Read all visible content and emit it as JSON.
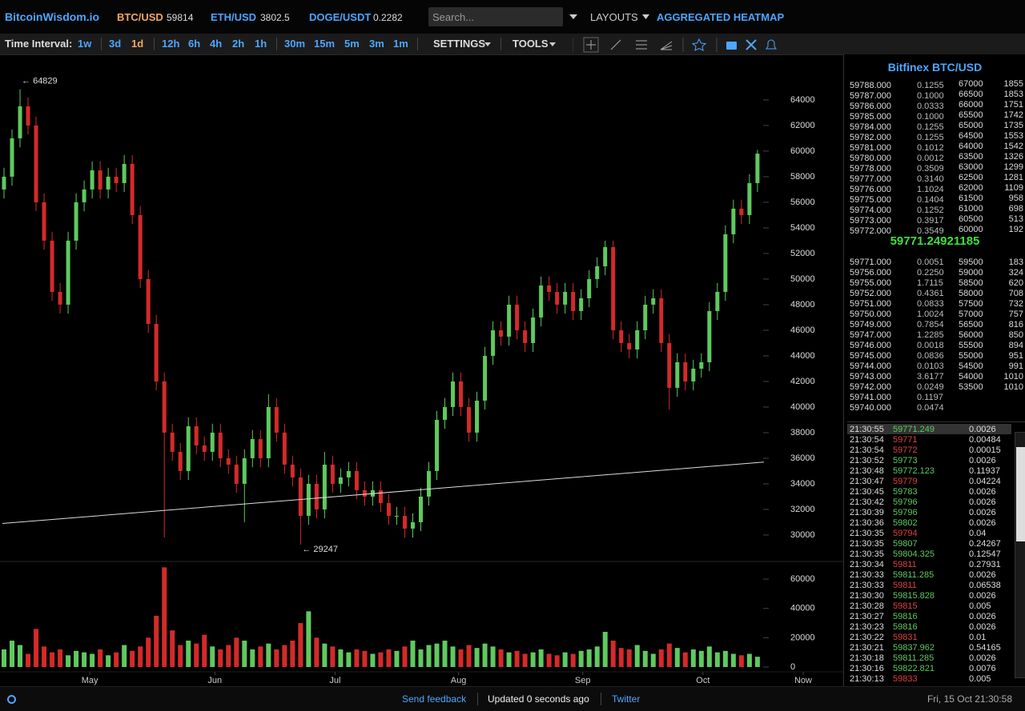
{
  "header": {
    "brand": "BitcoinWisdom.io",
    "tickers": [
      {
        "pair": "BTC/USD",
        "price": "59814",
        "color": "#f0a860"
      },
      {
        "pair": "ETH/USD",
        "price": "3802.5",
        "color": "#4da6ff"
      },
      {
        "pair": "DOGE/USDT",
        "price": "0.2282",
        "color": "#4da6ff"
      }
    ],
    "search_placeholder": "Search...",
    "layouts": "LAYOUTS",
    "heatmap": "AGGREGATED HEATMAP"
  },
  "toolbar": {
    "label": "Time Interval:",
    "intervals": [
      "1w",
      "3d",
      "1d",
      "12h",
      "6h",
      "4h",
      "2h",
      "1h",
      "30m",
      "15m",
      "5m",
      "3m",
      "1m"
    ],
    "active_interval": 2,
    "settings": "SETTINGS",
    "tools": "TOOLS"
  },
  "chart_data": {
    "type": "candlestick",
    "open": [
      57000,
      58000,
      61000,
      63500,
      62000,
      56000,
      53000,
      49000,
      48000,
      53000,
      56000,
      57000,
      58500,
      57000,
      58000,
      57500,
      59000,
      55000,
      50000,
      46500,
      42000,
      38000,
      36500,
      35000,
      38500,
      37000,
      36500,
      38000,
      36000,
      35500,
      34000,
      36000,
      37500,
      36000,
      40000,
      38000,
      35500,
      34500,
      31500,
      34000,
      32000,
      35500,
      34000,
      34500,
      35000,
      33500,
      33000,
      33500,
      32500,
      31500,
      31500,
      30500,
      31000,
      33000,
      35000,
      39000,
      40000,
      42000,
      40000,
      38000,
      40500,
      44000,
      46000,
      45500,
      48000,
      46000,
      45000,
      47000,
      49500,
      49000,
      48000,
      49000,
      47500,
      48500,
      50000,
      51000,
      52500,
      46000,
      45000,
      44500,
      46000,
      48000,
      48500,
      45000,
      41500,
      43500,
      42000,
      43000,
      43500,
      47500,
      49000,
      53500,
      55500,
      55000,
      57500
    ],
    "high": [
      58700,
      61700,
      64829,
      64200,
      62700,
      56700,
      53700,
      49700,
      53700,
      56700,
      57700,
      59200,
      59200,
      58700,
      58700,
      59700,
      59700,
      55700,
      50700,
      47200,
      42700,
      38700,
      37200,
      39200,
      39200,
      37700,
      38700,
      38700,
      36700,
      36200,
      36700,
      38200,
      38200,
      41000,
      40700,
      38700,
      36200,
      35200,
      34700,
      34700,
      36500,
      36200,
      35200,
      35700,
      35700,
      34200,
      34200,
      34200,
      33200,
      32200,
      32200,
      31700,
      33700,
      35700,
      39700,
      40700,
      42700,
      42700,
      40700,
      41200,
      44700,
      46700,
      46700,
      48700,
      48700,
      46700,
      47700,
      50200,
      50200,
      49700,
      49700,
      49700,
      49200,
      50700,
      51700,
      53000,
      53000,
      46700,
      45700,
      46700,
      48700,
      49200,
      49200,
      45700,
      44200,
      44200,
      43700,
      44200,
      48200,
      49700,
      54200,
      56200,
      56200,
      58200,
      60100
    ],
    "low": [
      56300,
      57300,
      60300,
      61300,
      55300,
      52300,
      48300,
      47300,
      47300,
      52300,
      55300,
      56300,
      56300,
      56300,
      56800,
      56800,
      54300,
      49300,
      45800,
      41300,
      29800,
      35800,
      34300,
      34300,
      36300,
      35800,
      35800,
      35300,
      34800,
      33300,
      31000,
      35300,
      35300,
      35300,
      37300,
      34800,
      33800,
      29247,
      30800,
      31300,
      31300,
      33300,
      33300,
      33800,
      32800,
      32300,
      32300,
      31800,
      30800,
      30800,
      29800,
      29800,
      30300,
      32300,
      34300,
      38300,
      39300,
      39300,
      37300,
      37300,
      39800,
      43300,
      44800,
      44800,
      45300,
      44300,
      44300,
      46300,
      48300,
      47300,
      47300,
      46800,
      46800,
      47800,
      49300,
      50300,
      45300,
      44300,
      43800,
      43800,
      45300,
      47300,
      44300,
      39800,
      40800,
      41300,
      41300,
      42300,
      42800,
      46800,
      48300,
      52800,
      54300,
      54300,
      56800
    ],
    "close": [
      58000,
      61000,
      63500,
      62000,
      56000,
      53000,
      49000,
      48000,
      53000,
      56000,
      57000,
      58500,
      57000,
      58000,
      57500,
      59000,
      55000,
      50000,
      46500,
      42000,
      38000,
      36500,
      35000,
      38500,
      37000,
      36500,
      38000,
      36000,
      35500,
      34000,
      36000,
      37500,
      36000,
      40000,
      38000,
      35500,
      34500,
      31500,
      34000,
      32000,
      35500,
      34000,
      34500,
      35000,
      33500,
      33000,
      33500,
      32500,
      31500,
      31500,
      30500,
      31000,
      33000,
      35000,
      39000,
      40000,
      42000,
      40000,
      38000,
      40500,
      44000,
      46000,
      45500,
      48000,
      46000,
      45000,
      47000,
      49500,
      49000,
      48000,
      49000,
      47500,
      48500,
      50000,
      51000,
      52500,
      46000,
      45000,
      44500,
      46000,
      48000,
      48500,
      45000,
      41500,
      43500,
      42000,
      43000,
      43500,
      47500,
      49000,
      53500,
      55500,
      55000,
      57500,
      59800
    ],
    "volume": [
      12000,
      18000,
      15000,
      9000,
      26000,
      14000,
      10000,
      12000,
      8000,
      11000,
      10000,
      9000,
      12000,
      8000,
      10000,
      15000,
      11000,
      14000,
      20000,
      35000,
      68000,
      25000,
      15000,
      18000,
      16000,
      22000,
      14000,
      12000,
      15000,
      20000,
      18000,
      12000,
      14000,
      16000,
      12000,
      15000,
      18000,
      30000,
      38000,
      20000,
      16000,
      14000,
      12000,
      10000,
      12000,
      11000,
      9000,
      10000,
      12000,
      11000,
      14000,
      18000,
      12000,
      15000,
      16000,
      18000,
      14000,
      12000,
      15000,
      13000,
      16000,
      14000,
      12000,
      10000,
      11000,
      9000,
      10000,
      12000,
      9000,
      8000,
      10000,
      9000,
      11000,
      12000,
      14000,
      24000,
      18000,
      13000,
      12000,
      15000,
      11000,
      9000,
      12000,
      16000,
      13000,
      10000,
      12000,
      11000,
      14000,
      10000,
      11000,
      9000,
      8000,
      9000,
      7000
    ],
    "up_color": "#5fc95f",
    "down_color": "#d42a2a",
    "xlim": [
      -0.5,
      104.7
    ],
    "xticks": [
      {
        "value": 10.7,
        "label": "May"
      },
      {
        "value": 26.3,
        "label": "Jun"
      },
      {
        "value": 41.3,
        "label": "Jul"
      },
      {
        "value": 56.7,
        "label": "Aug"
      },
      {
        "value": 72.2,
        "label": "Sep"
      },
      {
        "value": 87.2,
        "label": "Oct"
      },
      {
        "value": 99.7,
        "label": "Now"
      }
    ],
    "ylim": [
      28060,
      67120
    ],
    "yticks": [
      30000,
      32000,
      34000,
      36000,
      38000,
      40000,
      42000,
      44000,
      46000,
      48000,
      50000,
      52000,
      54000,
      56000,
      58000,
      60000,
      62000,
      64000
    ],
    "volume_ylim": [
      0,
      70400
    ],
    "volume_yticks": [
      0,
      20000,
      40000,
      60000
    ],
    "annotations": [
      {
        "label": "← 64829",
        "value": 64829
      },
      {
        "label": "← 29247",
        "value": 29247
      }
    ],
    "trend_line": {
      "x": [
        -0.2,
        94.8
      ],
      "y": [
        30900,
        35700
      ]
    }
  },
  "orderbook": {
    "title": "Bitfinex BTC/USD",
    "asks": [
      [
        "59788.000",
        "0.1255"
      ],
      [
        "59787.000",
        "0.1000"
      ],
      [
        "59786.000",
        "0.0333"
      ],
      [
        "59785.000",
        "0.1000"
      ],
      [
        "59784.000",
        "0.1255"
      ],
      [
        "59782.000",
        "0.1255"
      ],
      [
        "59781.000",
        "0.1012"
      ],
      [
        "59780.000",
        "0.0012"
      ],
      [
        "59778.000",
        "0.3509"
      ],
      [
        "59777.000",
        "0.3140"
      ],
      [
        "59776.000",
        "1.1024"
      ],
      [
        "59775.000",
        "0.1404"
      ],
      [
        "59774.000",
        "0.1252"
      ],
      [
        "59773.000",
        "0.3917"
      ],
      [
        "59772.000",
        "0.3549"
      ]
    ],
    "ask_depth": [
      [
        "67000",
        "1855"
      ],
      [
        "66500",
        "1853"
      ],
      [
        "66000",
        "1751"
      ],
      [
        "65500",
        "1742"
      ],
      [
        "65000",
        "1735"
      ],
      [
        "64500",
        "1553"
      ],
      [
        "64000",
        "1542"
      ],
      [
        "63500",
        "1326"
      ],
      [
        "63000",
        "1299"
      ],
      [
        "62500",
        "1281"
      ],
      [
        "62000",
        "1109"
      ],
      [
        "61500",
        "958"
      ],
      [
        "61000",
        "698"
      ],
      [
        "60500",
        "513"
      ],
      [
        "60000",
        "192"
      ]
    ],
    "last_price": "59771.24921185",
    "bids": [
      [
        "59771.000",
        "0.0051"
      ],
      [
        "59756.000",
        "0.2250"
      ],
      [
        "59755.000",
        "1.7115"
      ],
      [
        "59752.000",
        "0.4361"
      ],
      [
        "59751.000",
        "0.0833"
      ],
      [
        "59750.000",
        "1.0024"
      ],
      [
        "59749.000",
        "0.7854"
      ],
      [
        "59747.000",
        "1.2285"
      ],
      [
        "59746.000",
        "0.0018"
      ],
      [
        "59745.000",
        "0.0836"
      ],
      [
        "59744.000",
        "0.0103"
      ],
      [
        "59743.000",
        "3.6177"
      ],
      [
        "59742.000",
        "0.0249"
      ],
      [
        "59741.000",
        "0.1197"
      ],
      [
        "59740.000",
        "0.0474"
      ]
    ],
    "bid_depth": [
      [
        "59500",
        "183"
      ],
      [
        "59000",
        "324"
      ],
      [
        "58500",
        "620"
      ],
      [
        "58000",
        "708"
      ],
      [
        "57500",
        "732"
      ],
      [
        "57000",
        "757"
      ],
      [
        "56500",
        "816"
      ],
      [
        "56000",
        "850"
      ],
      [
        "55500",
        "894"
      ],
      [
        "55000",
        "951"
      ],
      [
        "54500",
        "991"
      ],
      [
        "54000",
        "1010"
      ],
      [
        "53500",
        "1010"
      ]
    ]
  },
  "trades": [
    {
      "time": "21:30:55",
      "price": "59771.249",
      "amount": "0.0026",
      "color": "#5fc95f"
    },
    {
      "time": "21:30:54",
      "price": "59771",
      "amount": "0.00484",
      "color": "#e04040"
    },
    {
      "time": "21:30:54",
      "price": "59772",
      "amount": "0.00015",
      "color": "#e04040"
    },
    {
      "time": "21:30:52",
      "price": "59773",
      "amount": "0.0026",
      "color": "#5fc95f"
    },
    {
      "time": "21:30:48",
      "price": "59772.123",
      "amount": "0.11937",
      "color": "#5fc95f"
    },
    {
      "time": "21:30:47",
      "price": "59779",
      "amount": "0.04224",
      "color": "#e04040"
    },
    {
      "time": "21:30:45",
      "price": "59783",
      "amount": "0.0026",
      "color": "#5fc95f"
    },
    {
      "time": "21:30:42",
      "price": "59796",
      "amount": "0.0026",
      "color": "#5fc95f"
    },
    {
      "time": "21:30:39",
      "price": "59796",
      "amount": "0.0026",
      "color": "#5fc95f"
    },
    {
      "time": "21:30:36",
      "price": "59802",
      "amount": "0.0026",
      "color": "#5fc95f"
    },
    {
      "time": "21:30:35",
      "price": "59794",
      "amount": "0.04",
      "color": "#e04040"
    },
    {
      "time": "21:30:35",
      "price": "59807",
      "amount": "0.24267",
      "color": "#5fc95f"
    },
    {
      "time": "21:30:35",
      "price": "59804.325",
      "amount": "0.12547",
      "color": "#5fc95f"
    },
    {
      "time": "21:30:34",
      "price": "59811",
      "amount": "0.27931",
      "color": "#e04040"
    },
    {
      "time": "21:30:33",
      "price": "59811.285",
      "amount": "0.0026",
      "color": "#5fc95f"
    },
    {
      "time": "21:30:33",
      "price": "59811",
      "amount": "0.06538",
      "color": "#e04040"
    },
    {
      "time": "21:30:30",
      "price": "59815.828",
      "amount": "0.0026",
      "color": "#5fc95f"
    },
    {
      "time": "21:30:28",
      "price": "59815",
      "amount": "0.005",
      "color": "#e04040"
    },
    {
      "time": "21:30:27",
      "price": "59816",
      "amount": "0.0026",
      "color": "#5fc95f"
    },
    {
      "time": "21:30:23",
      "price": "59816",
      "amount": "0.0026",
      "color": "#5fc95f"
    },
    {
      "time": "21:30:22",
      "price": "59831",
      "amount": "0.01",
      "color": "#e04040"
    },
    {
      "time": "21:30:21",
      "price": "59837.962",
      "amount": "0.54165",
      "color": "#5fc95f"
    },
    {
      "time": "21:30:18",
      "price": "59811.285",
      "amount": "0.0026",
      "color": "#5fc95f"
    },
    {
      "time": "21:30:16",
      "price": "59822.821",
      "amount": "0.0076",
      "color": "#5fc95f"
    },
    {
      "time": "21:30:13",
      "price": "59833",
      "amount": "0.005",
      "color": "#e04040"
    }
  ],
  "footer": {
    "feedback": "Send feedback",
    "updated": "Updated 0 seconds ago",
    "twitter": "Twitter",
    "datetime": "Fri, 15 Oct 21:30:58"
  }
}
